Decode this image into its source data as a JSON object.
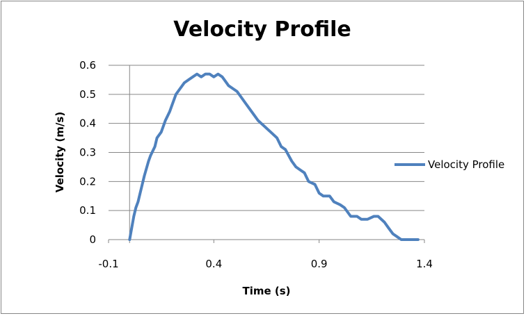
{
  "chart_data": {
    "type": "scatter",
    "title": "Velocity Profile",
    "xlabel": "Time (s)",
    "ylabel": "Velocity (m/s)",
    "xlim": [
      -0.1,
      1.4
    ],
    "ylim": [
      0,
      0.6
    ],
    "x_ticks": [
      -0.1,
      0.4,
      0.9,
      1.4
    ],
    "x_tick_labels": [
      "-0.1",
      "0.4",
      "0.9",
      "1.4"
    ],
    "y_ticks": [
      0,
      0.1,
      0.2,
      0.3,
      0.4,
      0.5,
      0.6
    ],
    "y_tick_labels": [
      "0",
      "0.1",
      "0.2",
      "0.3",
      "0.4",
      "0.5",
      "0.6"
    ],
    "grid": "horizontal",
    "legend_position": "right",
    "series": [
      {
        "name": "Velocity Profile",
        "color": "#4f81bd",
        "x": [
          0.0,
          0.01,
          0.02,
          0.03,
          0.04,
          0.05,
          0.07,
          0.09,
          0.1,
          0.12,
          0.13,
          0.15,
          0.17,
          0.19,
          0.2,
          0.22,
          0.24,
          0.26,
          0.28,
          0.3,
          0.32,
          0.34,
          0.36,
          0.38,
          0.4,
          0.42,
          0.44,
          0.45,
          0.47,
          0.49,
          0.51,
          0.53,
          0.55,
          0.57,
          0.59,
          0.61,
          0.64,
          0.67,
          0.7,
          0.72,
          0.74,
          0.77,
          0.79,
          0.81,
          0.83,
          0.85,
          0.88,
          0.9,
          0.92,
          0.95,
          0.97,
          1.0,
          1.02,
          1.05,
          1.08,
          1.1,
          1.13,
          1.16,
          1.18,
          1.21,
          1.23,
          1.25,
          1.27,
          1.29,
          1.31,
          1.33,
          1.35,
          1.37
        ],
        "y": [
          0.0,
          0.04,
          0.08,
          0.11,
          0.13,
          0.16,
          0.22,
          0.27,
          0.29,
          0.32,
          0.35,
          0.37,
          0.41,
          0.44,
          0.46,
          0.5,
          0.52,
          0.54,
          0.55,
          0.56,
          0.57,
          0.56,
          0.57,
          0.57,
          0.56,
          0.57,
          0.56,
          0.55,
          0.53,
          0.52,
          0.51,
          0.49,
          0.47,
          0.45,
          0.43,
          0.41,
          0.39,
          0.37,
          0.35,
          0.32,
          0.31,
          0.27,
          0.25,
          0.24,
          0.23,
          0.2,
          0.19,
          0.16,
          0.15,
          0.15,
          0.13,
          0.12,
          0.11,
          0.08,
          0.08,
          0.07,
          0.07,
          0.08,
          0.08,
          0.06,
          0.04,
          0.02,
          0.01,
          0.0,
          0.0,
          0.0,
          0.0,
          0.0
        ]
      }
    ]
  }
}
